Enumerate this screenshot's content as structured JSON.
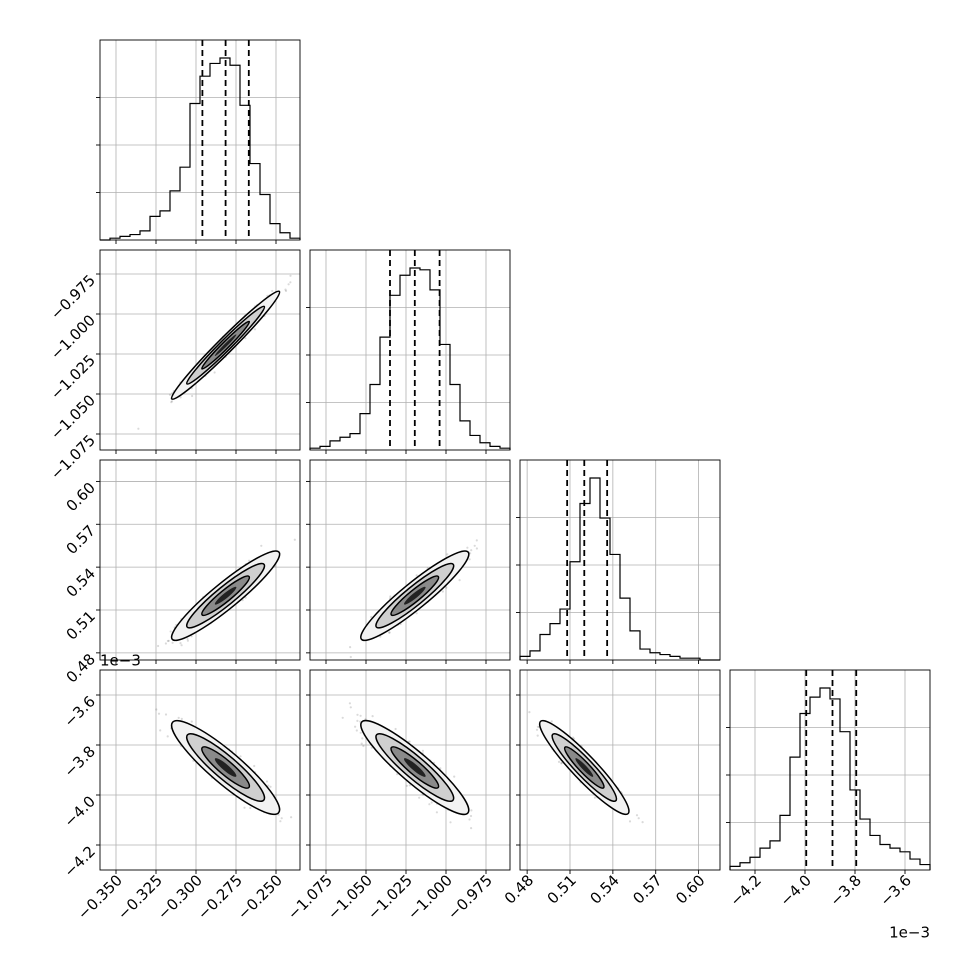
{
  "chart_data": {
    "type": "corner",
    "grid": true,
    "offset_labels": {
      "x_last": "1e−3",
      "y_last": "1e−3"
    },
    "axes": [
      {
        "range": [
          -0.36,
          -0.235
        ],
        "ticks": [
          -0.35,
          -0.325,
          -0.3,
          -0.275,
          -0.25
        ],
        "tick_labels": [
          "−0.350",
          "−0.325",
          "−0.300",
          "−0.275",
          "−0.250"
        ],
        "mean": -0.2815,
        "sd": 0.0135,
        "quantiles": [
          -0.296,
          -0.2815,
          -0.267
        ],
        "hist": [
          0.0,
          0.01,
          0.02,
          0.03,
          0.05,
          0.13,
          0.16,
          0.27,
          0.4,
          0.75,
          0.9,
          0.97,
          1.0,
          0.96,
          0.74,
          0.42,
          0.25,
          0.09,
          0.04,
          0.01
        ]
      },
      {
        "range": [
          -1.085,
          -0.96
        ],
        "ticks": [
          -1.075,
          -1.05,
          -1.025,
          -1.0,
          -0.975
        ],
        "tick_labels": [
          "−1.075",
          "−1.050",
          "−1.025",
          "−1.000",
          "−0.975"
        ],
        "mean": -1.0195,
        "sd": 0.0135,
        "quantiles": [
          -1.035,
          -1.0195,
          -1.004
        ],
        "hist": [
          0.01,
          0.02,
          0.05,
          0.07,
          0.09,
          0.2,
          0.36,
          0.62,
          0.85,
          0.96,
          1.0,
          0.99,
          0.88,
          0.58,
          0.36,
          0.16,
          0.08,
          0.04,
          0.02,
          0.01
        ]
      },
      {
        "range": [
          0.475,
          0.615
        ],
        "ticks": [
          0.48,
          0.51,
          0.54,
          0.57,
          0.6
        ],
        "tick_labels": [
          "0.48",
          "0.51",
          "0.54",
          "0.57",
          "0.60"
        ],
        "mean": 0.52,
        "sd": 0.0125,
        "quantiles": [
          0.508,
          0.52,
          0.536
        ],
        "hist": [
          0.02,
          0.05,
          0.14,
          0.2,
          0.28,
          0.54,
          0.86,
          1.0,
          0.78,
          0.58,
          0.34,
          0.16,
          0.06,
          0.04,
          0.03,
          0.02,
          0.01,
          0.01,
          0.0,
          0.0
        ]
      },
      {
        "range": [
          -4.3,
          -3.5
        ],
        "ticks": [
          -4.2,
          -4.0,
          -3.8,
          -3.6
        ],
        "tick_labels": [
          "−4.2",
          "−4.0",
          "−3.8",
          "−3.6"
        ],
        "mean": -3.89,
        "sd": 0.075,
        "quantiles": [
          -3.995,
          -3.89,
          -3.795
        ],
        "hist": [
          0.02,
          0.04,
          0.07,
          0.12,
          0.16,
          0.3,
          0.62,
          0.86,
          0.95,
          1.0,
          0.94,
          0.76,
          0.44,
          0.28,
          0.19,
          0.14,
          0.12,
          0.1,
          0.06,
          0.03
        ]
      }
    ],
    "correlations": [
      [
        1,
        0.98,
        0.93,
        -0.9
      ],
      [
        0.98,
        1,
        0.93,
        -0.91
      ],
      [
        0.93,
        0.93,
        1,
        -0.93
      ],
      [
        -0.9,
        -0.91,
        -0.93,
        1
      ]
    ]
  }
}
